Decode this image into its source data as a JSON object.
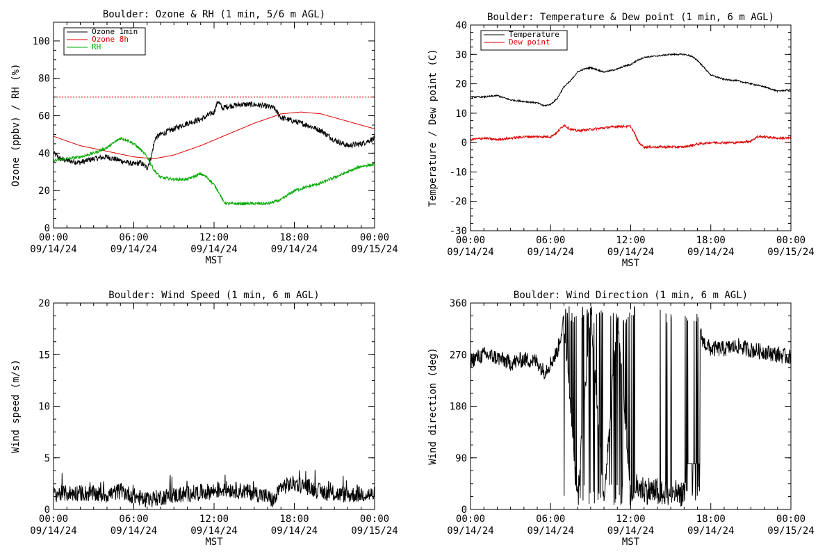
{
  "chart_data": [
    {
      "id": "ozone",
      "type": "line",
      "title": "Boulder: Ozone & RH (1 min, 5/6 m AGL)",
      "xlabel": "MST",
      "ylabel": "Ozone (ppbv) / RH (%)",
      "xlim": [
        0,
        24
      ],
      "ylim": [
        0,
        110
      ],
      "yticks": [
        0,
        20,
        40,
        60,
        80,
        100
      ],
      "xticks": [
        {
          "t": "00:00",
          "d": "09/14/24"
        },
        {
          "t": "06:00",
          "d": "09/14/24"
        },
        {
          "t": "12:00",
          "d": "09/14/24"
        },
        {
          "t": "18:00",
          "d": "09/14/24"
        },
        {
          "t": "00:00",
          "d": "09/15/24"
        }
      ],
      "legend": "top-left",
      "reference_line": {
        "y": 70,
        "color": "#dd0000",
        "style": "dotted"
      },
      "series": [
        {
          "name": "Ozone 1min",
          "color": "#000000",
          "noise": 1.5,
          "x": [
            0,
            0.5,
            1,
            2,
            3,
            4,
            5,
            6,
            6.5,
            7,
            7.3,
            7.6,
            8,
            9,
            10,
            11,
            12,
            12.3,
            12.6,
            13,
            14,
            15,
            16,
            16.5,
            17,
            18,
            19,
            20,
            21,
            22,
            23,
            24
          ],
          "y": [
            40,
            37,
            36,
            35,
            37,
            38,
            36,
            34,
            35,
            32,
            38,
            48,
            50,
            53,
            56,
            58,
            62,
            68,
            64,
            65,
            66,
            66,
            65,
            64,
            59,
            57,
            55,
            52,
            47,
            44,
            45,
            48
          ]
        },
        {
          "name": "Ozone 8h",
          "color": "#dd0000",
          "noise": 0,
          "x": [
            0,
            2,
            4,
            6,
            7.5,
            9,
            11,
            13,
            15,
            17,
            18.5,
            20,
            22,
            24
          ],
          "y": [
            49,
            44,
            41,
            38,
            37,
            39,
            44,
            50,
            56,
            61,
            62,
            61,
            57,
            53
          ]
        },
        {
          "name": "RH",
          "color": "#00aa00",
          "noise": 0.8,
          "x": [
            0,
            1,
            2,
            3,
            4,
            5,
            5.5,
            6,
            6.5,
            7,
            7.5,
            8,
            9,
            10,
            11,
            11.5,
            12,
            12.3,
            12.7,
            13,
            14,
            15,
            16,
            17,
            18,
            19,
            20,
            21,
            22,
            23,
            24
          ],
          "y": [
            36,
            37,
            38,
            40,
            43,
            48,
            47,
            45,
            42,
            38,
            31,
            27,
            26,
            26,
            29,
            27,
            23,
            20,
            14,
            13,
            13,
            13,
            13,
            15,
            20,
            22,
            24,
            27,
            30,
            33,
            34
          ]
        }
      ]
    },
    {
      "id": "temp",
      "type": "line",
      "title": "Boulder: Temperature & Dew point (1 min, 6 m AGL)",
      "xlabel": "MST",
      "ylabel": "Temperature / Dew point (C)",
      "xlim": [
        0,
        24
      ],
      "ylim": [
        -30,
        40
      ],
      "yticks": [
        -30,
        -20,
        -10,
        0,
        10,
        20,
        30,
        40
      ],
      "xticks": [
        {
          "t": "00:00",
          "d": "09/14/24"
        },
        {
          "t": "06:00",
          "d": "09/14/24"
        },
        {
          "t": "12:00",
          "d": "09/14/24"
        },
        {
          "t": "18:00",
          "d": "09/14/24"
        },
        {
          "t": "00:00",
          "d": "09/15/24"
        }
      ],
      "legend": "top-left",
      "series": [
        {
          "name": "Temperature",
          "color": "#000000",
          "noise": 0.25,
          "x": [
            0,
            1,
            2,
            3,
            4,
            5,
            5.5,
            6,
            6.5,
            7,
            7.5,
            8,
            8.5,
            9,
            10,
            11,
            11.5,
            12,
            12.5,
            13,
            14,
            15,
            16,
            16.5,
            17,
            18,
            19,
            20,
            21,
            22,
            23,
            24
          ],
          "y": [
            15.5,
            15.5,
            16,
            14.5,
            14,
            13.5,
            12.5,
            13,
            15,
            19,
            21,
            24,
            25,
            25.5,
            24,
            25,
            26,
            26.5,
            28,
            29,
            29.5,
            30,
            30,
            29.5,
            28,
            23,
            21.5,
            21,
            20,
            19,
            17.5,
            18
          ]
        },
        {
          "name": "Dew point",
          "color": "#dd0000",
          "noise": 0.4,
          "x": [
            0,
            1,
            2,
            3,
            4,
            5,
            6,
            6.5,
            7,
            7.5,
            8,
            9,
            10,
            11,
            12,
            12.3,
            12.6,
            13,
            14,
            15,
            16,
            17,
            18,
            19,
            20,
            21,
            21.5,
            22,
            23,
            24
          ],
          "y": [
            1,
            1.5,
            1,
            1.5,
            2,
            2,
            2,
            3.5,
            6,
            4.5,
            4,
            4.5,
            5,
            5.5,
            5.5,
            3,
            0,
            -1.5,
            -1.5,
            -1.5,
            -1.5,
            -0.5,
            0,
            0,
            0,
            0.5,
            2,
            2,
            1.5,
            1.5
          ]
        }
      ]
    },
    {
      "id": "wspd",
      "type": "line",
      "title": "Boulder: Wind Speed (1 min, 6 m AGL)",
      "xlabel": "MST",
      "ylabel": "Wind speed (m/s)",
      "xlim": [
        0,
        24
      ],
      "ylim": [
        0,
        20
      ],
      "yticks": [
        0,
        5,
        10,
        15,
        20
      ],
      "xticks": [
        {
          "t": "00:00",
          "d": "09/14/24"
        },
        {
          "t": "06:00",
          "d": "09/14/24"
        },
        {
          "t": "12:00",
          "d": "09/14/24"
        },
        {
          "t": "18:00",
          "d": "09/14/24"
        },
        {
          "t": "00:00",
          "d": "09/15/24"
        }
      ],
      "series": [
        {
          "name": "",
          "color": "#000000",
          "noise": 0.8,
          "x": [
            0,
            2,
            4,
            5,
            6,
            7,
            8,
            10,
            12,
            13,
            14,
            15,
            16,
            16.5,
            17,
            18,
            19,
            20,
            21,
            22,
            23,
            24
          ],
          "y": [
            1.5,
            1.6,
            1.4,
            1.8,
            1.3,
            0.9,
            1.2,
            1.5,
            1.8,
            2.0,
            1.8,
            1.6,
            1.2,
            0.8,
            2.2,
            2.5,
            2.2,
            1.7,
            1.5,
            1.4,
            1.5,
            1.4
          ]
        }
      ]
    },
    {
      "id": "wdir",
      "type": "line",
      "title": "Boulder: Wind Direction (1 min, 6 m AGL)",
      "xlabel": "MST",
      "ylabel": "Wind direction (deg)",
      "xlim": [
        0,
        24
      ],
      "ylim": [
        0,
        360
      ],
      "yticks": [
        0,
        90,
        180,
        270,
        360
      ],
      "xticks": [
        {
          "t": "00:00",
          "d": "09/14/24"
        },
        {
          "t": "06:00",
          "d": "09/14/24"
        },
        {
          "t": "12:00",
          "d": "09/14/24"
        },
        {
          "t": "18:00",
          "d": "09/14/24"
        },
        {
          "t": "00:00",
          "d": "09/15/24"
        }
      ],
      "series": [
        {
          "name": "",
          "color": "#000000",
          "noise": 14,
          "x": [
            0,
            1,
            2,
            3,
            4,
            5,
            5.5,
            6,
            6.5,
            7,
            8,
            9,
            10,
            11,
            12,
            12.5,
            13,
            14,
            15,
            16,
            17,
            17.5,
            18,
            19,
            20,
            21,
            22,
            23,
            24
          ],
          "y": [
            260,
            270,
            265,
            255,
            262,
            258,
            240,
            255,
            275,
            330,
            20,
            345,
            10,
            350,
            15,
            40,
            35,
            30,
            25,
            30,
            320,
            290,
            280,
            280,
            285,
            278,
            275,
            270,
            265
          ]
        }
      ]
    }
  ]
}
